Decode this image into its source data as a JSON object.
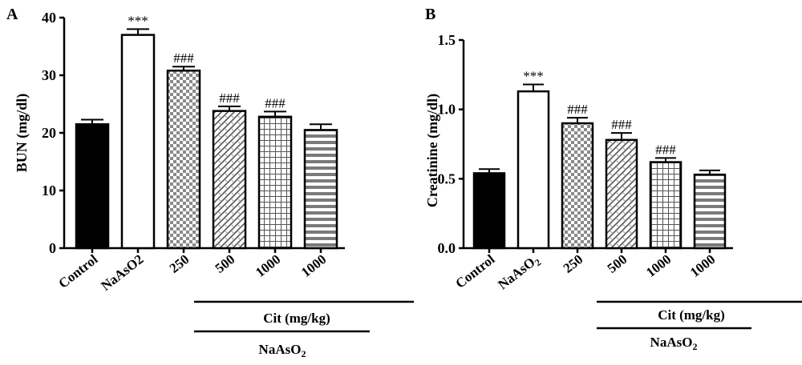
{
  "chart_data": [
    {
      "type": "bar",
      "panel": "A",
      "ylabel": "BUN (mg/dl)",
      "ylim": [
        0,
        40
      ],
      "yticks": [
        "0",
        "10",
        "20",
        "30",
        "40"
      ],
      "categories": [
        "Control",
        "NaAsO2",
        "250",
        "500",
        "1000",
        "1000"
      ],
      "values": [
        21.5,
        37.0,
        30.8,
        23.8,
        22.8,
        20.5
      ],
      "errors": [
        0.8,
        1.0,
        0.7,
        0.8,
        0.9,
        1.0
      ],
      "annotations": [
        "",
        "***",
        "###",
        "###",
        "###",
        ""
      ],
      "fill_patterns": [
        "solid-black",
        "white",
        "checker",
        "diagonal-weave",
        "grid",
        "horizontal-stripes"
      ],
      "group_labels": {
        "cit": "Cit (mg/kg)",
        "naaso2_base": "NaAsO",
        "naaso2_sub": "2"
      }
    },
    {
      "type": "bar",
      "panel": "B",
      "ylabel": "Creatinine (mg/dl)",
      "ylim": [
        0,
        1.5
      ],
      "yticks": [
        "0.0",
        "0.5",
        "1.0",
        "1.5"
      ],
      "categories": [
        "Control",
        "NaAsO2",
        "250",
        "500",
        "1000",
        "1000"
      ],
      "values": [
        0.54,
        1.13,
        0.9,
        0.78,
        0.62,
        0.53
      ],
      "errors": [
        0.03,
        0.05,
        0.04,
        0.05,
        0.03,
        0.03
      ],
      "annotations": [
        "",
        "***",
        "###",
        "###",
        "###",
        ""
      ],
      "fill_patterns": [
        "solid-black",
        "white",
        "checker",
        "diagonal-weave",
        "grid",
        "horizontal-stripes"
      ],
      "group_labels": {
        "cit": "Cit (mg/kg)",
        "naaso2_base": "NaAsO",
        "naaso2_sub": "2"
      }
    }
  ]
}
